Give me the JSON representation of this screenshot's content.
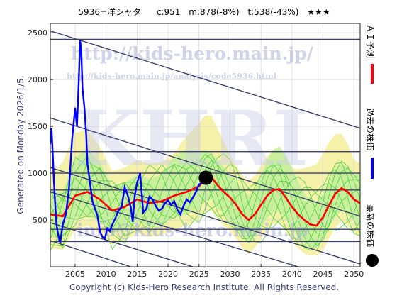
{
  "header": {
    "code": "5936=洋シャタ",
    "current": "c:951",
    "median": "m:878(-8%)",
    "target": "t:538(-43%)",
    "stars": "★★★"
  },
  "side_note": "Generated on Monday 2026/1/5.",
  "footer": "Copyright (c) Kids-Hero Research Institute. All Rights Reserved.",
  "watermark": {
    "url": "http://kids-hero.main.jp/",
    "analysis_url": "http://kids-hero.main.jp/analysis/code5936.html",
    "logo": "KHRI",
    "info": "info@kids-hero.main.jp"
  },
  "legend": {
    "ai_forecast": "ＡＩ予測",
    "past_price": "過去の株価",
    "latest_price": "最新の株価"
  },
  "colors": {
    "ai_line": "#ff0000",
    "price_line": "#0000ff",
    "trend_lines": "#3d3f6e",
    "green_band": "#49d13a",
    "yellow_band": "#f3ee9a",
    "latest_marker": "#000000"
  },
  "chart_data": {
    "type": "line",
    "xlim": [
      2001,
      2051
    ],
    "ylim": [
      0,
      2600
    ],
    "x_ticks": [
      2005,
      2010,
      2015,
      2020,
      2025,
      2030,
      2035,
      2040,
      2045,
      2050
    ],
    "y_ticks": [
      0,
      500,
      1000,
      1500,
      2000,
      2500
    ],
    "grid": true,
    "horizontal_levels": [
      2430,
      1230,
      1000,
      820,
      400,
      270
    ],
    "diagonal_trendlines": [
      [
        [
          2001,
          2520
        ],
        [
          2051,
          1480
        ]
      ],
      [
        [
          2001,
          1590
        ],
        [
          2051,
          540
        ]
      ],
      [
        [
          2001,
          1060
        ],
        [
          2051,
          30
        ]
      ],
      [
        [
          2001,
          800
        ],
        [
          2041,
          0
        ]
      ],
      [
        [
          2001,
          470
        ],
        [
          2024,
          0
        ]
      ],
      [
        [
          2001,
          280
        ],
        [
          2014,
          0
        ]
      ]
    ],
    "past_price": {
      "x": [
        2001.0,
        2001.2,
        2001.4,
        2001.6,
        2001.8,
        2002.0,
        2002.3,
        2002.6,
        2003.0,
        2003.5,
        2004.0,
        2004.5,
        2005.0,
        2005.3,
        2005.6,
        2005.8,
        2006.0,
        2006.2,
        2006.5,
        2006.8,
        2007.0,
        2007.4,
        2007.8,
        2008.2,
        2008.6,
        2009.0,
        2009.4,
        2009.8,
        2010.2,
        2010.6,
        2011.0,
        2011.5,
        2012.0,
        2012.5,
        2013.0,
        2013.5,
        2014.0,
        2014.3,
        2014.6,
        2015.0,
        2015.5,
        2016.0,
        2016.5,
        2017.0,
        2017.5,
        2018.0,
        2018.5,
        2019.0,
        2019.5,
        2020.0,
        2020.5,
        2021.0,
        2021.5,
        2022.0,
        2022.5,
        2023.0,
        2023.5,
        2024.0,
        2024.5,
        2025.0,
        2025.5,
        2026.0
      ],
      "y": [
        1310,
        1480,
        1200,
        900,
        650,
        450,
        330,
        260,
        450,
        560,
        820,
        1350,
        1700,
        1500,
        2000,
        2420,
        2300,
        1900,
        1700,
        1400,
        1100,
        900,
        700,
        620,
        550,
        380,
        320,
        300,
        410,
        380,
        450,
        520,
        600,
        640,
        850,
        760,
        630,
        480,
        750,
        900,
        1000,
        580,
        620,
        750,
        720,
        650,
        600,
        620,
        680,
        710,
        660,
        700,
        610,
        560,
        650,
        720,
        690,
        740,
        800,
        880,
        900,
        951
      ]
    },
    "ai_forecast": {
      "x": [
        2001,
        2003,
        2005,
        2007,
        2009,
        2011,
        2013,
        2015,
        2017,
        2019,
        2021,
        2023,
        2025,
        2026,
        2027,
        2028,
        2029,
        2030,
        2031,
        2032,
        2033,
        2034,
        2035,
        2036,
        2037,
        2038,
        2039,
        2040,
        2041,
        2042,
        2043,
        2044,
        2045,
        2046,
        2047,
        2048,
        2049,
        2050,
        2051
      ],
      "y": [
        560,
        540,
        760,
        800,
        720,
        600,
        640,
        720,
        680,
        700,
        760,
        800,
        860,
        940,
        960,
        870,
        800,
        740,
        660,
        560,
        500,
        560,
        660,
        760,
        820,
        830,
        740,
        640,
        560,
        500,
        450,
        440,
        530,
        660,
        780,
        840,
        800,
        720,
        680
      ]
    },
    "latest": {
      "x": 2026.1,
      "y": 951
    }
  }
}
